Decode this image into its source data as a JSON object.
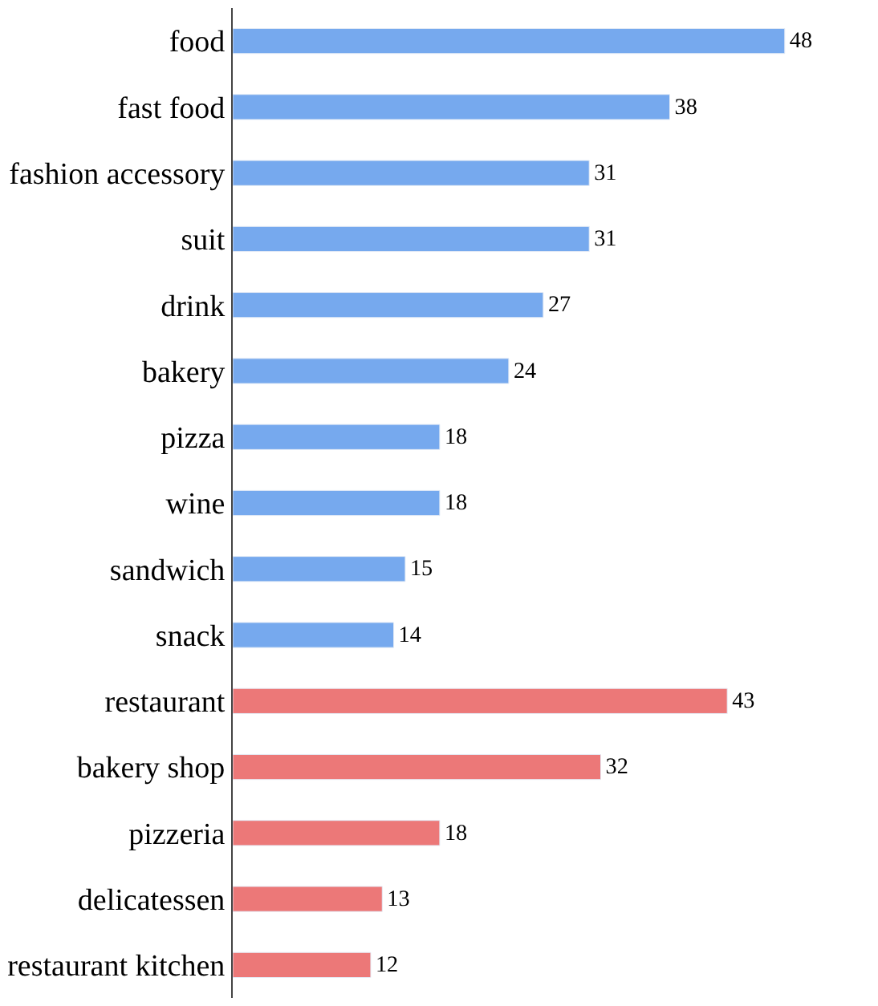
{
  "chart_data": {
    "type": "bar",
    "orientation": "horizontal",
    "categories": [
      "food",
      "fast food",
      "fashion accessory",
      "suit",
      "drink",
      "bakery",
      "pizza",
      "wine",
      "sandwich",
      "snack",
      "restaurant",
      "bakery shop",
      "pizzeria",
      "delicatessen",
      "restaurant kitchen"
    ],
    "values": [
      48,
      38,
      31,
      31,
      27,
      24,
      18,
      18,
      15,
      14,
      43,
      32,
      18,
      13,
      12
    ],
    "colors": [
      "#76a9ee",
      "#76a9ee",
      "#76a9ee",
      "#76a9ee",
      "#76a9ee",
      "#76a9ee",
      "#76a9ee",
      "#76a9ee",
      "#76a9ee",
      "#76a9ee",
      "#ec7878",
      "#ec7878",
      "#ec7878",
      "#ec7878",
      "#ec7878"
    ],
    "data_labels": true
  }
}
